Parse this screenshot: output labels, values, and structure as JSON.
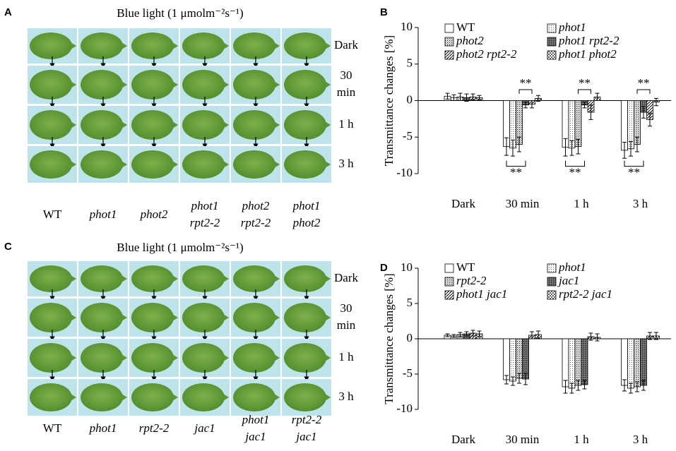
{
  "panels": [
    {
      "letter": "A",
      "title": "Blue light (1 μmolm⁻²s⁻¹)",
      "rows": [
        [
          "Dark"
        ],
        [
          "30",
          "min"
        ],
        [
          "1 h"
        ],
        [
          "3 h"
        ]
      ],
      "genotypes": [
        {
          "lines": [
            "WT"
          ],
          "italic": false
        },
        {
          "lines": [
            "phot1"
          ],
          "italic": true
        },
        {
          "lines": [
            "phot2"
          ],
          "italic": true
        },
        {
          "lines": [
            "phot1",
            "rpt2-2"
          ],
          "italic": true
        },
        {
          "lines": [
            "phot2",
            "rpt2-2"
          ],
          "italic": true
        },
        {
          "lines": [
            "phot1",
            "phot2"
          ],
          "italic": true
        }
      ]
    },
    {
      "letter": "C",
      "title": "Blue light (1 μmolm⁻²s⁻¹)",
      "rows": [
        [
          "Dark"
        ],
        [
          "30",
          "min"
        ],
        [
          "1 h"
        ],
        [
          "3 h"
        ]
      ],
      "genotypes": [
        {
          "lines": [
            "WT"
          ],
          "italic": false
        },
        {
          "lines": [
            "phot1"
          ],
          "italic": true
        },
        {
          "lines": [
            "rpt2-2"
          ],
          "italic": true
        },
        {
          "lines": [
            "jac1"
          ],
          "italic": true
        },
        {
          "lines": [
            "phot1",
            "jac1"
          ],
          "italic": true
        },
        {
          "lines": [
            "rpt2-2",
            "jac1"
          ],
          "italic": true
        }
      ]
    }
  ],
  "chart_data": [
    {
      "type": "bar",
      "panel": "B",
      "ylabel": "Transmittance changes [%]",
      "categories": [
        "Dark",
        "30 min",
        "1 h",
        "3 h"
      ],
      "ylim": [
        -10,
        10
      ],
      "yticks": [
        -10,
        -5,
        0,
        5,
        10
      ],
      "series": [
        {
          "name": "WT",
          "italic": false,
          "pattern": "white",
          "values": [
            0.6,
            -6.3,
            -6.4,
            -6.8
          ],
          "errors": [
            0.4,
            1.2,
            1.2,
            1.1
          ]
        },
        {
          "name": "phot1",
          "italic": true,
          "pattern": "vlines",
          "values": [
            0.4,
            -6.5,
            -6.5,
            -6.6
          ],
          "errors": [
            0.4,
            1.1,
            1.0,
            1.0
          ]
        },
        {
          "name": "phot2",
          "italic": true,
          "pattern": "dots",
          "values": [
            0.5,
            -6.0,
            -6.3,
            -6.0
          ],
          "errors": [
            0.5,
            1.0,
            1.0,
            1.0
          ]
        },
        {
          "name": "phot1 rpt2-2",
          "italic": true,
          "pattern": "dark",
          "values": [
            0.4,
            -0.6,
            -0.6,
            -1.6
          ],
          "errors": [
            0.5,
            0.4,
            0.4,
            0.8
          ]
        },
        {
          "name": "phot2 rpt2-2",
          "italic": true,
          "pattern": "diag",
          "values": [
            0.5,
            -0.5,
            -1.6,
            -2.6
          ],
          "errors": [
            0.4,
            0.5,
            1.0,
            0.9
          ]
        },
        {
          "name": "phot1 phot2",
          "italic": true,
          "pattern": "check",
          "values": [
            0.4,
            0.3,
            0.5,
            -0.2
          ],
          "errors": [
            0.3,
            0.4,
            0.5,
            0.5
          ]
        }
      ],
      "annotations": [
        "**",
        "**",
        "**",
        "**",
        "**",
        "**"
      ]
    },
    {
      "type": "bar",
      "panel": "D",
      "ylabel": "Transmittance changes [%]",
      "categories": [
        "Dark",
        "30 min",
        "1 h",
        "3 h"
      ],
      "ylim": [
        -10,
        10
      ],
      "yticks": [
        -10,
        -5,
        0,
        5,
        10
      ],
      "series": [
        {
          "name": "WT",
          "italic": false,
          "pattern": "white",
          "values": [
            0.5,
            -5.8,
            -6.8,
            -6.6
          ],
          "errors": [
            0.2,
            0.6,
            0.9,
            0.8
          ]
        },
        {
          "name": "phot1",
          "italic": true,
          "pattern": "vlines",
          "values": [
            0.4,
            -6.0,
            -7.0,
            -7.0
          ],
          "errors": [
            0.2,
            0.6,
            0.7,
            0.7
          ]
        },
        {
          "name": "rpt2-2",
          "italic": true,
          "pattern": "dots",
          "values": [
            0.6,
            -5.6,
            -6.6,
            -6.8
          ],
          "errors": [
            0.3,
            0.7,
            0.7,
            0.7
          ]
        },
        {
          "name": "jac1",
          "italic": true,
          "pattern": "dark",
          "values": [
            0.7,
            -5.7,
            -6.5,
            -6.6
          ],
          "errors": [
            0.3,
            0.8,
            0.6,
            0.7
          ]
        },
        {
          "name": "phot1 jac1",
          "italic": true,
          "pattern": "diag",
          "values": [
            0.8,
            0.5,
            0.3,
            0.4
          ],
          "errors": [
            0.4,
            0.5,
            0.5,
            0.5
          ]
        },
        {
          "name": "rpt2-2 jac1",
          "italic": true,
          "pattern": "check",
          "values": [
            0.7,
            0.6,
            0.2,
            0.4
          ],
          "errors": [
            0.4,
            0.5,
            0.5,
            0.5
          ]
        }
      ]
    }
  ]
}
